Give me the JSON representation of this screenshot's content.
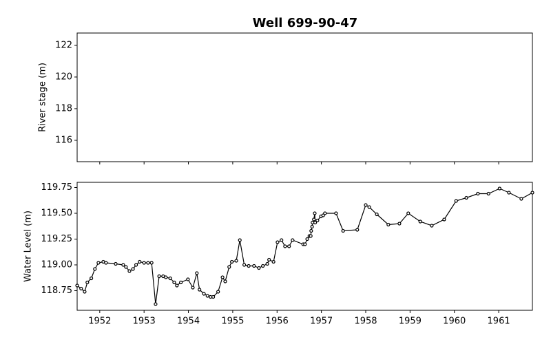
{
  "title": "Well 699-90-47",
  "chart_data": [
    {
      "type": "line",
      "ylabel": "River stage (m)",
      "ylim": [
        114.65,
        122.78
      ],
      "yticks": [
        116,
        118,
        120,
        122
      ],
      "series": []
    },
    {
      "type": "line",
      "ylabel": "Water Level (m)",
      "xlim": [
        1951.49,
        1961.76
      ],
      "xticks": [
        1952,
        1953,
        1954,
        1955,
        1956,
        1957,
        1958,
        1959,
        1960,
        1961
      ],
      "ylim": [
        118.56,
        119.8
      ],
      "yticks": [
        118.75,
        {
          "value": 119,
          "label": "119.00"
        },
        119.25,
        {
          "value": 119.5,
          "label": "119.50"
        },
        119.75
      ],
      "series": [
        {
          "color": "#000000",
          "x": [
            1951.49,
            1951.58,
            1951.66,
            1951.72,
            1951.81,
            1951.89,
            1951.97,
            1952.08,
            1952.14,
            1952.36,
            1952.53,
            1952.59,
            1952.67,
            1952.75,
            1952.82,
            1952.9,
            1953.0,
            1953.09,
            1953.17,
            1953.26,
            1953.34,
            1953.43,
            1953.49,
            1953.59,
            1953.68,
            1953.74,
            1953.83,
            1953.99,
            1954.1,
            1954.19,
            1954.25,
            1954.35,
            1954.43,
            1954.5,
            1954.56,
            1954.67,
            1954.77,
            1954.83,
            1954.92,
            1954.98,
            1955.08,
            1955.16,
            1955.26,
            1955.36,
            1955.48,
            1955.59,
            1955.68,
            1955.78,
            1955.82,
            1955.92,
            1956.01,
            1956.1,
            1956.18,
            1956.27,
            1956.35,
            1956.59,
            1956.63,
            1956.68,
            1956.73,
            1956.76,
            1956.77,
            1956.79,
            1956.8,
            1956.83,
            1956.85,
            1956.86,
            1956.91,
            1956.99,
            1957.04,
            1957.08,
            1957.33,
            1957.49,
            1957.81,
            1958.0,
            1958.08,
            1958.25,
            1958.51,
            1958.76,
            1958.96,
            1959.23,
            1959.49,
            1959.77,
            1960.04,
            1960.27,
            1960.53,
            1960.77,
            1961.02,
            1961.23,
            1961.51,
            1961.76
          ],
          "values": [
            118.8,
            118.77,
            118.74,
            118.83,
            118.87,
            118.96,
            119.02,
            119.03,
            119.02,
            119.01,
            119.0,
            118.98,
            118.94,
            118.96,
            119.0,
            119.03,
            119.02,
            119.02,
            119.02,
            118.62,
            118.89,
            118.89,
            118.88,
            118.87,
            118.83,
            118.8,
            118.83,
            118.86,
            118.78,
            118.92,
            118.76,
            118.72,
            118.7,
            118.69,
            118.69,
            118.74,
            118.88,
            118.84,
            118.98,
            119.03,
            119.04,
            119.24,
            119.0,
            118.99,
            118.99,
            118.97,
            118.99,
            119.01,
            119.05,
            119.03,
            119.22,
            119.24,
            119.18,
            119.18,
            119.24,
            119.2,
            119.2,
            119.25,
            119.28,
            119.28,
            119.33,
            119.37,
            119.41,
            119.44,
            119.5,
            119.41,
            119.43,
            119.47,
            119.48,
            119.5,
            119.5,
            119.33,
            119.34,
            119.58,
            119.56,
            119.49,
            119.39,
            119.4,
            119.5,
            119.42,
            119.38,
            119.44,
            119.62,
            119.65,
            119.69,
            119.69,
            119.74,
            119.7,
            119.64,
            119.7
          ]
        }
      ]
    }
  ]
}
